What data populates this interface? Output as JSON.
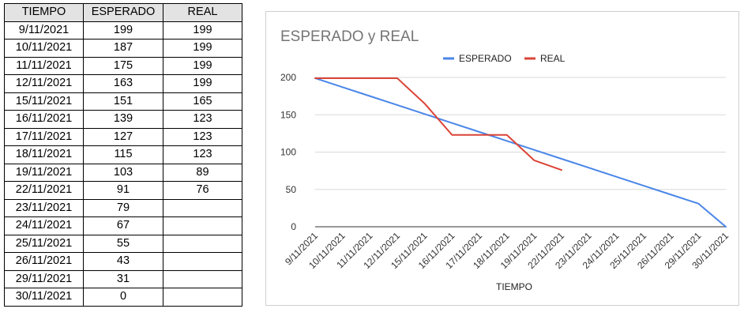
{
  "table": {
    "headers": [
      "TIEMPO",
      "ESPERADO",
      "REAL"
    ],
    "rows": [
      [
        "9/11/2021",
        "199",
        "199"
      ],
      [
        "10/11/2021",
        "187",
        "199"
      ],
      [
        "11/11/2021",
        "175",
        "199"
      ],
      [
        "12/11/2021",
        "163",
        "199"
      ],
      [
        "15/11/2021",
        "151",
        "165"
      ],
      [
        "16/11/2021",
        "139",
        "123"
      ],
      [
        "17/11/2021",
        "127",
        "123"
      ],
      [
        "18/11/2021",
        "115",
        "123"
      ],
      [
        "19/11/2021",
        "103",
        "89"
      ],
      [
        "22/11/2021",
        "91",
        "76"
      ],
      [
        "23/11/2021",
        "79",
        ""
      ],
      [
        "24/11/2021",
        "67",
        ""
      ],
      [
        "25/11/2021",
        "55",
        ""
      ],
      [
        "26/11/2021",
        "43",
        ""
      ],
      [
        "29/11/2021",
        "31",
        ""
      ],
      [
        "30/11/2021",
        "0",
        ""
      ]
    ]
  },
  "chart_data": {
    "type": "line",
    "title": "ESPERADO y REAL",
    "xlabel": "TIEMPO",
    "ylabel": "",
    "ylim": [
      0,
      200
    ],
    "yticks": [
      0,
      50,
      100,
      150,
      200
    ],
    "grid": true,
    "legend": "top",
    "categories": [
      "9/11/2021",
      "10/11/2021",
      "11/11/2021",
      "12/11/2021",
      "15/11/2021",
      "16/11/2021",
      "17/11/2021",
      "18/11/2021",
      "19/11/2021",
      "22/11/2021",
      "23/11/2021",
      "24/11/2021",
      "25/11/2021",
      "26/11/2021",
      "29/11/2021",
      "30/11/2021"
    ],
    "series": [
      {
        "name": "ESPERADO",
        "color": "#4a86e8",
        "values": [
          199,
          187,
          175,
          163,
          151,
          139,
          127,
          115,
          103,
          91,
          79,
          67,
          55,
          43,
          31,
          0
        ]
      },
      {
        "name": "REAL",
        "color": "#db4437",
        "values": [
          199,
          199,
          199,
          199,
          165,
          123,
          123,
          123,
          89,
          76,
          null,
          null,
          null,
          null,
          null,
          null
        ]
      }
    ]
  }
}
